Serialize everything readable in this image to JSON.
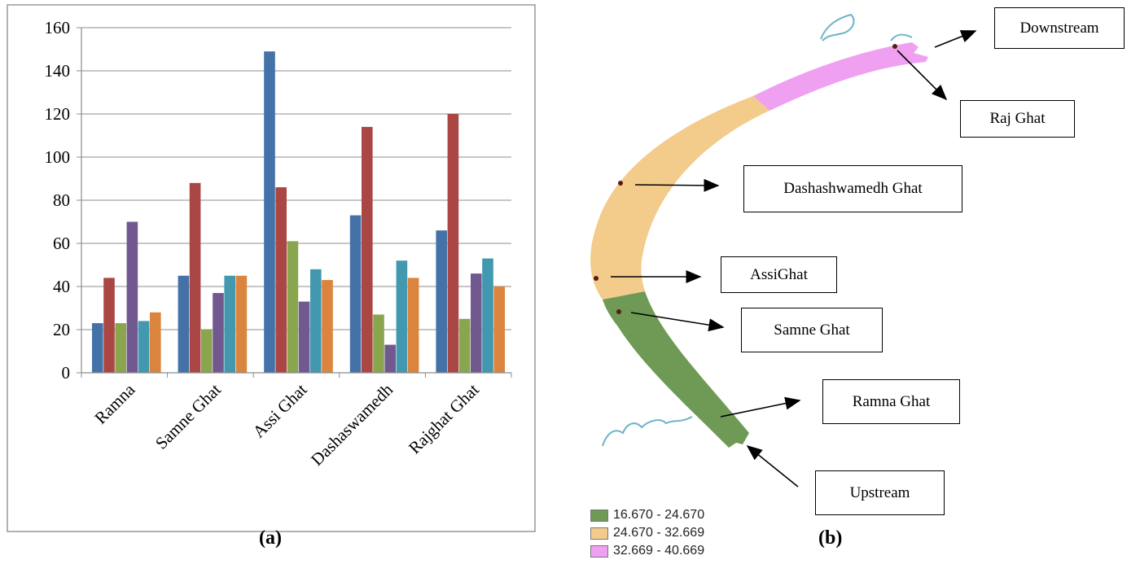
{
  "chart_data": {
    "type": "bar",
    "categories": [
      "Ramna",
      "Samne Ghat",
      "Assi Ghat",
      "Dashaswamedh",
      "Rajghat Ghat"
    ],
    "series": [
      {
        "values": [
          23,
          45,
          149,
          73,
          66
        ],
        "color": "#4472A8"
      },
      {
        "values": [
          44,
          88,
          86,
          114,
          120
        ],
        "color": "#AA4643"
      },
      {
        "values": [
          23,
          20,
          61,
          27,
          25
        ],
        "color": "#89A54E"
      },
      {
        "values": [
          70,
          37,
          33,
          13,
          46
        ],
        "color": "#71588F"
      },
      {
        "values": [
          24,
          45,
          48,
          52,
          53
        ],
        "color": "#4198AF"
      },
      {
        "values": [
          28,
          45,
          43,
          44,
          40
        ],
        "color": "#DB843D"
      }
    ],
    "y_ticks": [
      "0",
      "20",
      "40",
      "60",
      "80",
      "100",
      "120",
      "140",
      "160"
    ],
    "ylim": [
      0,
      160
    ],
    "grid": true,
    "legend": "none"
  },
  "map": {
    "labels": {
      "downstream": "Downstream",
      "raj_ghat": "Raj Ghat",
      "dashashwamedh": "Dashashwamedh Ghat",
      "assi": "AssiGhat",
      "samne": "Samne Ghat",
      "ramna": "Ramna Ghat",
      "upstream": "Upstream"
    },
    "legend": [
      {
        "range": "16.670 - 24.670",
        "color": "#6E9A56"
      },
      {
        "range": "24.670 - 32.669",
        "color": "#F3CB8B"
      },
      {
        "range": "32.669 - 40.669",
        "color": "#F0A0F0"
      }
    ]
  },
  "captions": {
    "a": "(a)",
    "b": "(b)"
  }
}
